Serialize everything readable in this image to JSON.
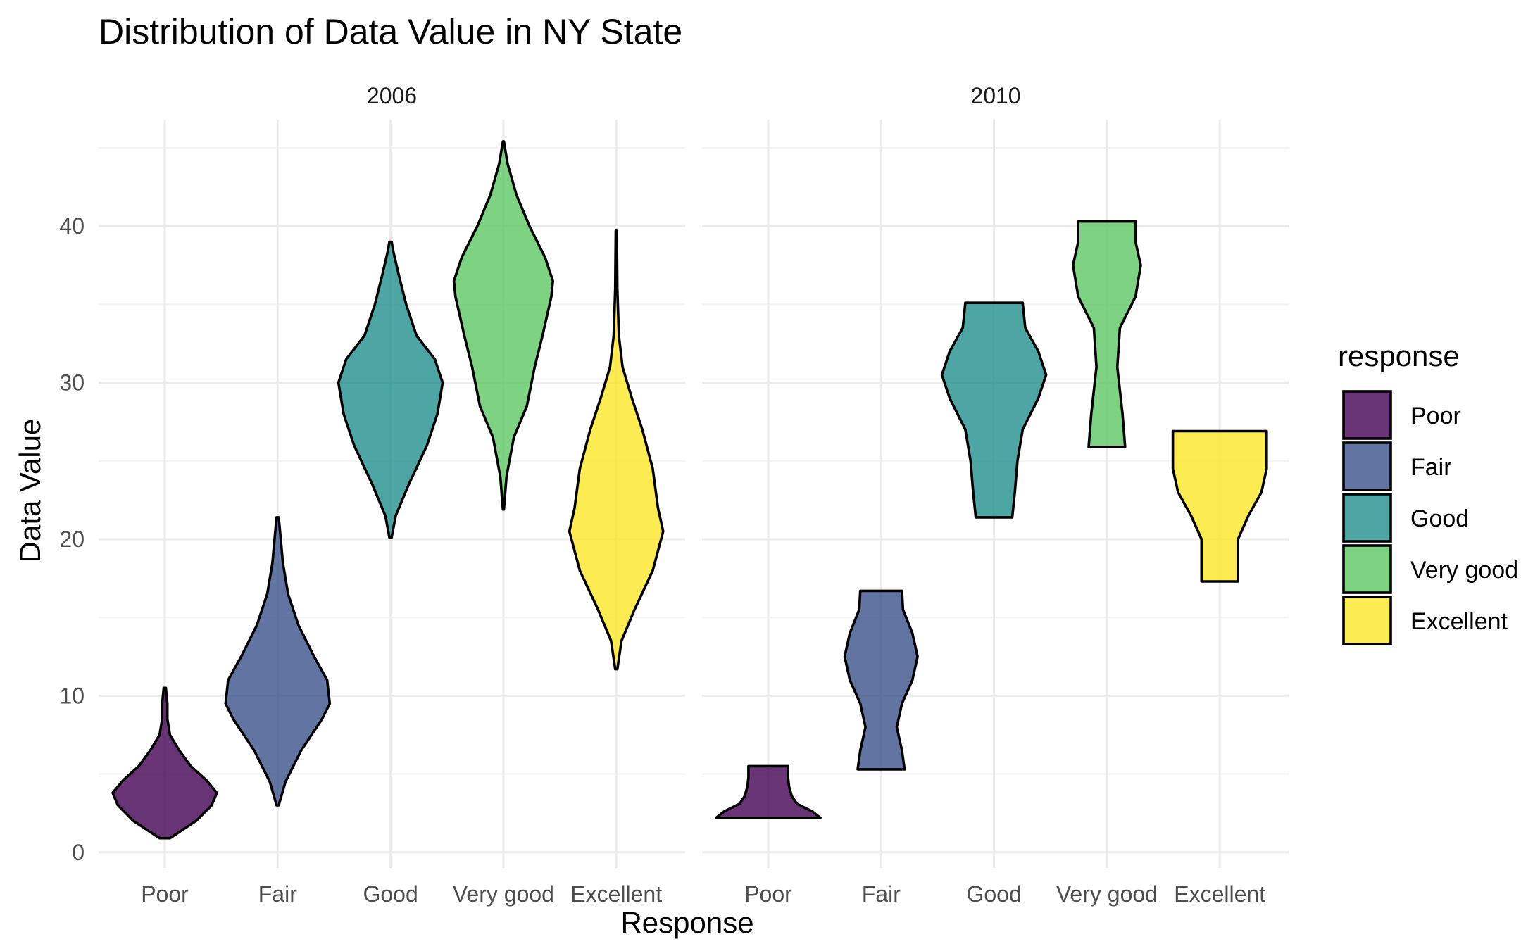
{
  "chart_data": {
    "type": "violin",
    "title": "Distribution of Data Value in NY State",
    "xlabel": "Response",
    "ylabel": "Data Value",
    "ylim": [
      -1,
      46.8
    ],
    "yticks": [
      0,
      10,
      20,
      30,
      40
    ],
    "categories": [
      "Poor",
      "Fair",
      "Good",
      "Very good",
      "Excellent"
    ],
    "grid": true,
    "legend": {
      "title": "response",
      "position": "right",
      "entries": [
        {
          "label": "Poor",
          "color": "#440154"
        },
        {
          "label": "Fair",
          "color": "#3B528B"
        },
        {
          "label": "Good",
          "color": "#21908C"
        },
        {
          "label": "Very good",
          "color": "#5DC863"
        },
        {
          "label": "Excellent",
          "color": "#FDE725"
        }
      ]
    },
    "facets": [
      {
        "label": "2006",
        "violins": [
          {
            "category": "Poor",
            "min": 0.9,
            "max": 10.5,
            "profile": [
              [
                0.9,
                0.1
              ],
              [
                1.3,
                0.28
              ],
              [
                2.0,
                0.6
              ],
              [
                3.0,
                0.9
              ],
              [
                3.8,
                1.0
              ],
              [
                4.6,
                0.8
              ],
              [
                5.5,
                0.5
              ],
              [
                6.5,
                0.28
              ],
              [
                7.5,
                0.1
              ],
              [
                8.5,
                0.05
              ],
              [
                9.5,
                0.05
              ],
              [
                10.5,
                0.02
              ]
            ]
          },
          {
            "category": "Fair",
            "min": 3.0,
            "max": 21.4,
            "profile": [
              [
                3.0,
                0.02
              ],
              [
                4.5,
                0.15
              ],
              [
                6.5,
                0.45
              ],
              [
                8.5,
                0.85
              ],
              [
                9.5,
                1.0
              ],
              [
                11.0,
                0.95
              ],
              [
                12.5,
                0.7
              ],
              [
                14.5,
                0.4
              ],
              [
                16.5,
                0.2
              ],
              [
                18.5,
                0.1
              ],
              [
                20.0,
                0.06
              ],
              [
                21.4,
                0.02
              ]
            ]
          },
          {
            "category": "Good",
            "min": 20.1,
            "max": 39.0,
            "profile": [
              [
                20.1,
                0.02
              ],
              [
                21.5,
                0.1
              ],
              [
                23.5,
                0.35
              ],
              [
                26.0,
                0.7
              ],
              [
                28.0,
                0.9
              ],
              [
                30.0,
                1.0
              ],
              [
                31.5,
                0.85
              ],
              [
                33.0,
                0.5
              ],
              [
                35.0,
                0.3
              ],
              [
                37.0,
                0.15
              ],
              [
                38.3,
                0.06
              ],
              [
                39.0,
                0.02
              ]
            ]
          },
          {
            "category": "Very good",
            "min": 21.9,
            "max": 45.4,
            "profile": [
              [
                21.9,
                0.01
              ],
              [
                24.0,
                0.06
              ],
              [
                26.5,
                0.2
              ],
              [
                28.5,
                0.45
              ],
              [
                31.0,
                0.6
              ],
              [
                33.0,
                0.75
              ],
              [
                35.5,
                0.92
              ],
              [
                36.5,
                0.95
              ],
              [
                38.0,
                0.8
              ],
              [
                40.0,
                0.5
              ],
              [
                42.0,
                0.25
              ],
              [
                44.0,
                0.08
              ],
              [
                45.4,
                0.01
              ]
            ]
          },
          {
            "category": "Excellent",
            "min": 11.7,
            "max": 39.7,
            "profile": [
              [
                11.7,
                0.02
              ],
              [
                13.5,
                0.1
              ],
              [
                15.5,
                0.35
              ],
              [
                18.0,
                0.7
              ],
              [
                20.5,
                0.9
              ],
              [
                22.0,
                0.8
              ],
              [
                24.5,
                0.7
              ],
              [
                27.0,
                0.5
              ],
              [
                29.0,
                0.3
              ],
              [
                31.0,
                0.12
              ],
              [
                33.0,
                0.05
              ],
              [
                36.0,
                0.02
              ],
              [
                39.7,
                0.01
              ]
            ]
          }
        ]
      },
      {
        "label": "2010",
        "violins": [
          {
            "category": "Poor",
            "min": 2.2,
            "max": 5.5,
            "profile": [
              [
                2.2,
                1.0
              ],
              [
                2.6,
                0.85
              ],
              [
                3.1,
                0.55
              ],
              [
                3.6,
                0.45
              ],
              [
                4.2,
                0.4
              ],
              [
                4.8,
                0.38
              ],
              [
                5.5,
                0.38
              ]
            ]
          },
          {
            "category": "Fair",
            "min": 5.3,
            "max": 16.7,
            "profile": [
              [
                5.3,
                0.45
              ],
              [
                6.5,
                0.4
              ],
              [
                8.0,
                0.3
              ],
              [
                9.5,
                0.4
              ],
              [
                11.0,
                0.6
              ],
              [
                12.5,
                0.7
              ],
              [
                14.0,
                0.6
              ],
              [
                15.5,
                0.42
              ],
              [
                16.7,
                0.4
              ]
            ]
          },
          {
            "category": "Good",
            "min": 21.4,
            "max": 35.1,
            "profile": [
              [
                21.4,
                0.35
              ],
              [
                23.0,
                0.4
              ],
              [
                25.0,
                0.45
              ],
              [
                27.0,
                0.55
              ],
              [
                29.0,
                0.85
              ],
              [
                30.5,
                1.0
              ],
              [
                32.0,
                0.85
              ],
              [
                33.5,
                0.6
              ],
              [
                35.1,
                0.55
              ]
            ]
          },
          {
            "category": "Very good",
            "min": 25.9,
            "max": 40.3,
            "profile": [
              [
                25.9,
                0.35
              ],
              [
                28.0,
                0.3
              ],
              [
                31.0,
                0.2
              ],
              [
                33.5,
                0.25
              ],
              [
                35.5,
                0.55
              ],
              [
                37.5,
                0.65
              ],
              [
                39.0,
                0.55
              ],
              [
                40.3,
                0.55
              ]
            ]
          },
          {
            "category": "Excellent",
            "min": 17.3,
            "max": 26.9,
            "profile": [
              [
                17.3,
                0.35
              ],
              [
                18.5,
                0.35
              ],
              [
                20.0,
                0.35
              ],
              [
                21.5,
                0.55
              ],
              [
                23.0,
                0.8
              ],
              [
                24.5,
                0.9
              ],
              [
                26.0,
                0.9
              ],
              [
                26.9,
                0.9
              ]
            ]
          }
        ]
      }
    ]
  }
}
